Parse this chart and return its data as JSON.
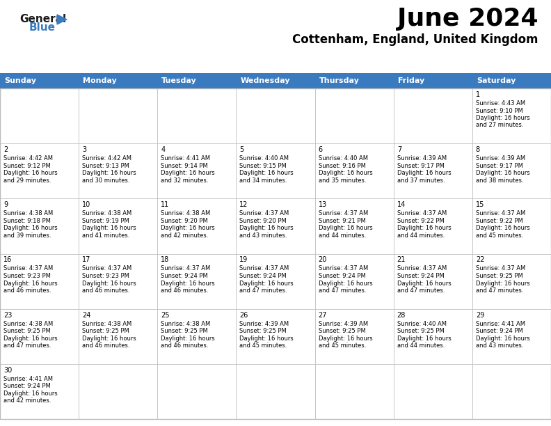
{
  "title": "June 2024",
  "subtitle": "Cottenham, England, United Kingdom",
  "header_bg": "#3a7abf",
  "header_text_color": "#ffffff",
  "cell_bg_white": "#ffffff",
  "border_color": "#bbbbbb",
  "day_headers": [
    "Sunday",
    "Monday",
    "Tuesday",
    "Wednesday",
    "Thursday",
    "Friday",
    "Saturday"
  ],
  "days": [
    {
      "day": 1,
      "col": 6,
      "row": 0,
      "sunrise": "4:43 AM",
      "sunset": "9:10 PM",
      "daylight": "16 hours and 27 minutes."
    },
    {
      "day": 2,
      "col": 0,
      "row": 1,
      "sunrise": "4:42 AM",
      "sunset": "9:12 PM",
      "daylight": "16 hours and 29 minutes."
    },
    {
      "day": 3,
      "col": 1,
      "row": 1,
      "sunrise": "4:42 AM",
      "sunset": "9:13 PM",
      "daylight": "16 hours and 30 minutes."
    },
    {
      "day": 4,
      "col": 2,
      "row": 1,
      "sunrise": "4:41 AM",
      "sunset": "9:14 PM",
      "daylight": "16 hours and 32 minutes."
    },
    {
      "day": 5,
      "col": 3,
      "row": 1,
      "sunrise": "4:40 AM",
      "sunset": "9:15 PM",
      "daylight": "16 hours and 34 minutes."
    },
    {
      "day": 6,
      "col": 4,
      "row": 1,
      "sunrise": "4:40 AM",
      "sunset": "9:16 PM",
      "daylight": "16 hours and 35 minutes."
    },
    {
      "day": 7,
      "col": 5,
      "row": 1,
      "sunrise": "4:39 AM",
      "sunset": "9:17 PM",
      "daylight": "16 hours and 37 minutes."
    },
    {
      "day": 8,
      "col": 6,
      "row": 1,
      "sunrise": "4:39 AM",
      "sunset": "9:17 PM",
      "daylight": "16 hours and 38 minutes."
    },
    {
      "day": 9,
      "col": 0,
      "row": 2,
      "sunrise": "4:38 AM",
      "sunset": "9:18 PM",
      "daylight": "16 hours and 39 minutes."
    },
    {
      "day": 10,
      "col": 1,
      "row": 2,
      "sunrise": "4:38 AM",
      "sunset": "9:19 PM",
      "daylight": "16 hours and 41 minutes."
    },
    {
      "day": 11,
      "col": 2,
      "row": 2,
      "sunrise": "4:38 AM",
      "sunset": "9:20 PM",
      "daylight": "16 hours and 42 minutes."
    },
    {
      "day": 12,
      "col": 3,
      "row": 2,
      "sunrise": "4:37 AM",
      "sunset": "9:20 PM",
      "daylight": "16 hours and 43 minutes."
    },
    {
      "day": 13,
      "col": 4,
      "row": 2,
      "sunrise": "4:37 AM",
      "sunset": "9:21 PM",
      "daylight": "16 hours and 44 minutes."
    },
    {
      "day": 14,
      "col": 5,
      "row": 2,
      "sunrise": "4:37 AM",
      "sunset": "9:22 PM",
      "daylight": "16 hours and 44 minutes."
    },
    {
      "day": 15,
      "col": 6,
      "row": 2,
      "sunrise": "4:37 AM",
      "sunset": "9:22 PM",
      "daylight": "16 hours and 45 minutes."
    },
    {
      "day": 16,
      "col": 0,
      "row": 3,
      "sunrise": "4:37 AM",
      "sunset": "9:23 PM",
      "daylight": "16 hours and 46 minutes."
    },
    {
      "day": 17,
      "col": 1,
      "row": 3,
      "sunrise": "4:37 AM",
      "sunset": "9:23 PM",
      "daylight": "16 hours and 46 minutes."
    },
    {
      "day": 18,
      "col": 2,
      "row": 3,
      "sunrise": "4:37 AM",
      "sunset": "9:24 PM",
      "daylight": "16 hours and 46 minutes."
    },
    {
      "day": 19,
      "col": 3,
      "row": 3,
      "sunrise": "4:37 AM",
      "sunset": "9:24 PM",
      "daylight": "16 hours and 47 minutes."
    },
    {
      "day": 20,
      "col": 4,
      "row": 3,
      "sunrise": "4:37 AM",
      "sunset": "9:24 PM",
      "daylight": "16 hours and 47 minutes."
    },
    {
      "day": 21,
      "col": 5,
      "row": 3,
      "sunrise": "4:37 AM",
      "sunset": "9:24 PM",
      "daylight": "16 hours and 47 minutes."
    },
    {
      "day": 22,
      "col": 6,
      "row": 3,
      "sunrise": "4:37 AM",
      "sunset": "9:25 PM",
      "daylight": "16 hours and 47 minutes."
    },
    {
      "day": 23,
      "col": 0,
      "row": 4,
      "sunrise": "4:38 AM",
      "sunset": "9:25 PM",
      "daylight": "16 hours and 47 minutes."
    },
    {
      "day": 24,
      "col": 1,
      "row": 4,
      "sunrise": "4:38 AM",
      "sunset": "9:25 PM",
      "daylight": "16 hours and 46 minutes."
    },
    {
      "day": 25,
      "col": 2,
      "row": 4,
      "sunrise": "4:38 AM",
      "sunset": "9:25 PM",
      "daylight": "16 hours and 46 minutes."
    },
    {
      "day": 26,
      "col": 3,
      "row": 4,
      "sunrise": "4:39 AM",
      "sunset": "9:25 PM",
      "daylight": "16 hours and 45 minutes."
    },
    {
      "day": 27,
      "col": 4,
      "row": 4,
      "sunrise": "4:39 AM",
      "sunset": "9:25 PM",
      "daylight": "16 hours and 45 minutes."
    },
    {
      "day": 28,
      "col": 5,
      "row": 4,
      "sunrise": "4:40 AM",
      "sunset": "9:25 PM",
      "daylight": "16 hours and 44 minutes."
    },
    {
      "day": 29,
      "col": 6,
      "row": 4,
      "sunrise": "4:41 AM",
      "sunset": "9:24 PM",
      "daylight": "16 hours and 43 minutes."
    },
    {
      "day": 30,
      "col": 0,
      "row": 5,
      "sunrise": "4:41 AM",
      "sunset": "9:24 PM",
      "daylight": "16 hours and 42 minutes."
    }
  ],
  "logo_general_color": "#1a1a1a",
  "logo_blue_color": "#3a7abf",
  "logo_triangle_color": "#3a7abf",
  "title_fontsize": 26,
  "subtitle_fontsize": 12,
  "header_fontsize": 8,
  "day_num_fontsize": 7,
  "cell_text_fontsize": 6
}
